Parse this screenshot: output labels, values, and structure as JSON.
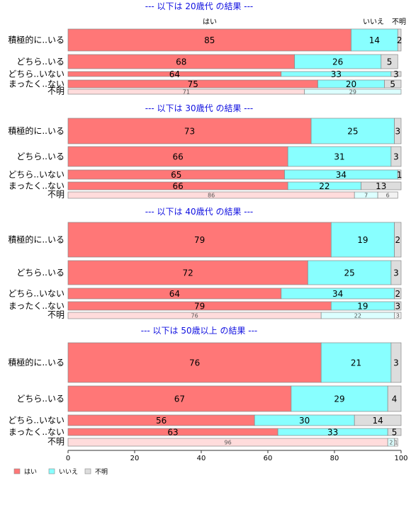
{
  "chart_data": {
    "type": "bar",
    "orientation": "horizontal",
    "stacked": true,
    "xlim": [
      0,
      100
    ],
    "xticks": [
      0,
      20,
      40,
      60,
      80,
      100
    ],
    "series_names": [
      "はい",
      "いいえ",
      "不明"
    ],
    "colors": {
      "yes": "#ff7777",
      "no": "#88ffff",
      "unknown": "#dddddd",
      "yes_light": "#ffdcdc",
      "no_light": "#dcffff",
      "unknown_light": "#f2f2f2",
      "title": "#1010e0"
    },
    "legend": {
      "position": "bottom-left",
      "items": [
        "はい",
        "いいえ",
        "不明"
      ]
    },
    "column_headers": [
      "はい",
      "いいえ",
      "不明"
    ],
    "panels": [
      {
        "title": "--- 以下は 20歳代 の結果 ---",
        "rows": [
          {
            "label": "積極的に..いる",
            "size": "large",
            "values": [
              85,
              14,
              2
            ]
          },
          {
            "label": "どちら..いる",
            "size": "medium",
            "values": [
              68,
              26,
              5
            ]
          },
          {
            "label": "どちら..いない",
            "size": "small",
            "values": [
              64,
              33,
              3
            ]
          },
          {
            "label": "まったく..ない",
            "size": "small",
            "values": [
              75,
              20,
              5
            ]
          },
          {
            "label": "不明",
            "size": "tiny",
            "values": [
              71,
              29,
              0
            ]
          }
        ]
      },
      {
        "title": "--- 以下は 30歳代 の結果 ---",
        "rows": [
          {
            "label": "積極的に..いる",
            "size": "large",
            "values": [
              73,
              25,
              3
            ]
          },
          {
            "label": "どちら..いる",
            "size": "medium",
            "values": [
              66,
              31,
              3
            ]
          },
          {
            "label": "どちら..いない",
            "size": "small",
            "values": [
              65,
              34,
              1
            ]
          },
          {
            "label": "まったく..ない",
            "size": "small",
            "values": [
              66,
              22,
              13
            ]
          },
          {
            "label": "不明",
            "size": "tiny",
            "values": [
              86,
              7,
              6
            ]
          }
        ]
      },
      {
        "title": "--- 以下は 40歳代 の結果 ---",
        "rows": [
          {
            "label": "積極的に..いる",
            "size": "large",
            "values": [
              79,
              19,
              2
            ]
          },
          {
            "label": "どちら..いる",
            "size": "medium",
            "values": [
              72,
              25,
              3
            ]
          },
          {
            "label": "どちら..いない",
            "size": "small",
            "values": [
              64,
              34,
              2
            ]
          },
          {
            "label": "まったく..ない",
            "size": "small",
            "values": [
              79,
              19,
              3
            ]
          },
          {
            "label": "不明",
            "size": "tiny",
            "values": [
              76,
              22,
              3
            ]
          }
        ]
      },
      {
        "title": "--- 以下は 50歳以上 の結果 ---",
        "rows": [
          {
            "label": "積極的に..いる",
            "size": "large",
            "values": [
              76,
              21,
              3
            ]
          },
          {
            "label": "どちら..いる",
            "size": "medium",
            "values": [
              67,
              29,
              4
            ]
          },
          {
            "label": "どちら..いない",
            "size": "small",
            "values": [
              56,
              30,
              14
            ]
          },
          {
            "label": "まったく..ない",
            "size": "small",
            "values": [
              63,
              33,
              5
            ]
          },
          {
            "label": "不明",
            "size": "tiny",
            "values": [
              96,
              2,
              1
            ]
          }
        ]
      }
    ]
  }
}
